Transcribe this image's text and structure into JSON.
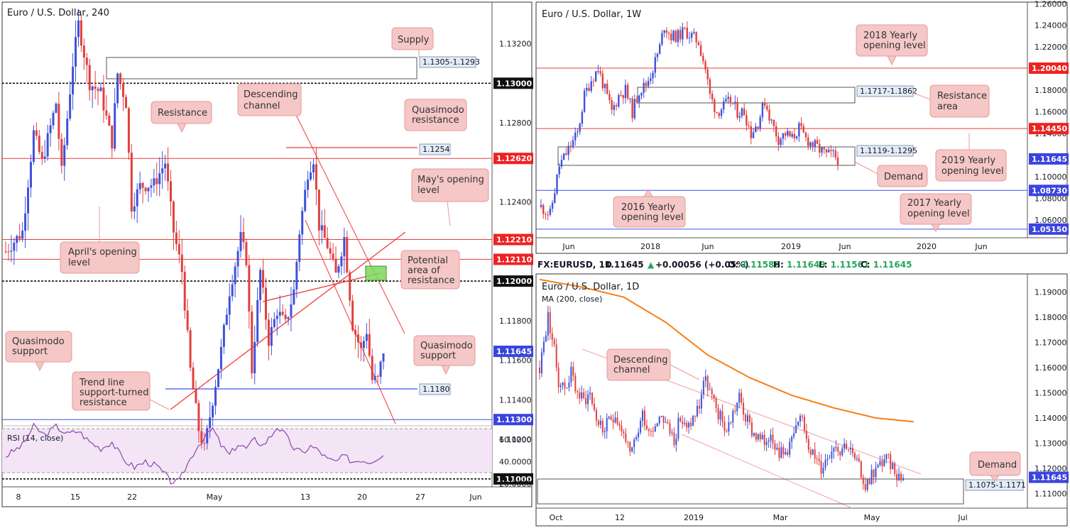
{
  "colors": {
    "up": "#3f51d8",
    "down": "#e0403e",
    "res_line": "#ef3b3b",
    "sup_line": "#3f51f0",
    "ann_bg": "#f5c7c7",
    "ann_border": "#e89a9a",
    "ma": "#f57f17",
    "rsi": "#8e44ad",
    "rsi_band": "#f3e5f5",
    "green_zone": "#7ad85a",
    "price_tag": "#3a44e0",
    "tag_red": "#ee2222",
    "tag_black": "#111111"
  },
  "panels": {
    "h4": {
      "title": "Euro / U.S. Dollar, 240",
      "x_ticks": [
        "8",
        "15",
        "22",
        "May",
        "13",
        "20",
        "27",
        "Jun"
      ],
      "y_ticks": [
        "1.13200",
        "1.12800",
        "1.12400",
        "1.11800",
        "1.11600",
        "1.11400",
        "1.11200"
      ],
      "price_tags": [
        "1.13000",
        "1.12620",
        "1.12210",
        "1.12110",
        "1.12000",
        "1.11645",
        "1.11300",
        "1.11000"
      ],
      "boxes": [
        "1.1305-1.1293",
        "1.1254",
        "1.1180"
      ],
      "annotations": [
        "Supply",
        "Descending channel",
        "Resistance",
        "Quasimodo resistance",
        "May's opening level",
        "April's opening level",
        "Potential area of resistance",
        "Quasimodo support",
        "Quasimodo support",
        "Trend line support-turned resistance"
      ],
      "rsi": {
        "label": "RSI (14, close)",
        "ticks": [
          "60.0000",
          "40.0000",
          "20.0000"
        ]
      }
    },
    "weekly": {
      "title": "Euro / U.S. Dollar, 1W",
      "x_ticks": [
        "Jun",
        "2018",
        "Jun",
        "2019",
        "Jun",
        "2020",
        "Jun"
      ],
      "y_ticks": [
        "1.26000",
        "1.24000",
        "1.22000",
        "1.18000",
        "1.16000",
        "1.14000",
        "1.10000",
        "1.08000",
        "1.06000"
      ],
      "price_tags": [
        "1.20040",
        "1.14450",
        "1.11645",
        "1.08730",
        "1.05150"
      ],
      "boxes": [
        "1.1717-1.1862",
        "1.1119-1.1295"
      ],
      "annotations": [
        "2018 Yearly opening level",
        "Resistance area",
        "2019 Yearly opening level",
        "Demand",
        "2016 Yearly opening level",
        "2017 Yearly opening level"
      ]
    },
    "daily": {
      "title": "Euro / U.S. Dollar, 1D",
      "ma_label": "MA (200, close)",
      "x_ticks": [
        "Oct",
        "12",
        "2019",
        "Mar",
        "May",
        "Jul"
      ],
      "y_ticks": [
        "1.19000",
        "1.18000",
        "1.17000",
        "1.16000",
        "1.15000",
        "1.14000",
        "1.13000",
        "1.12000",
        "1.11000"
      ],
      "price_tags": [
        "1.11645"
      ],
      "boxes": [
        "1.1075-1.1171"
      ],
      "annotations": [
        "Descending channel",
        "Demand"
      ],
      "info": {
        "symbol": "FX:EURUSD, 1D",
        "last": "1.11645",
        "change": "+0.00056 (+0.05%)",
        "o_label": "O:",
        "o": "1.11588",
        "h_label": "H:",
        "h": "1.11649",
        "l_label": "L:",
        "l": "1.11561",
        "c_label": "C:",
        "c": "1.11645"
      }
    }
  },
  "chart_data": [
    {
      "type": "candlestick",
      "title": "Euro / U.S. Dollar, 240",
      "x_ticks": [
        "8",
        "15",
        "22",
        "May",
        "13",
        "20",
        "27",
        "Jun"
      ],
      "ylim": [
        1.1096,
        1.1341
      ],
      "y_ticks": [
        1.132,
        1.128,
        1.124,
        1.118,
        1.116,
        1.114,
        1.112
      ],
      "levels": [
        {
          "value": 1.13,
          "style": "dotted"
        },
        {
          "value": 1.1262,
          "style": "resistance"
        },
        {
          "value": 1.1221,
          "style": "resistance"
        },
        {
          "value": 1.1211,
          "style": "resistance"
        },
        {
          "value": 1.12,
          "style": "dotted"
        },
        {
          "value": 1.113,
          "style": "support"
        },
        {
          "value": 1.11,
          "style": "dotted"
        }
      ],
      "zones": [
        {
          "label": "1.1305-1.1293",
          "from": 1.1293,
          "to": 1.1305
        }
      ],
      "last": 1.11645,
      "close_path": [
        [
          0,
          1.1215
        ],
        [
          6,
          1.1225
        ],
        [
          10,
          1.1275
        ],
        [
          13,
          1.126
        ],
        [
          18,
          1.129
        ],
        [
          20,
          1.1255
        ],
        [
          24,
          1.131
        ],
        [
          26,
          1.133
        ],
        [
          30,
          1.13
        ],
        [
          34,
          1.1295
        ],
        [
          38,
          1.127
        ],
        [
          40,
          1.1305
        ],
        [
          43,
          1.129
        ],
        [
          45,
          1.1238
        ],
        [
          48,
          1.1248
        ],
        [
          53,
          1.1249
        ],
        [
          57,
          1.126
        ],
        [
          60,
          1.1225
        ],
        [
          63,
          1.1205
        ],
        [
          66,
          1.1155
        ],
        [
          69,
          1.1125
        ],
        [
          71,
          1.1115
        ],
        [
          74,
          1.114
        ],
        [
          77,
          1.1165
        ],
        [
          80,
          1.1195
        ],
        [
          84,
          1.1222
        ],
        [
          86,
          1.1211
        ],
        [
          88,
          1.1155
        ],
        [
          91,
          1.1205
        ],
        [
          94,
          1.117
        ],
        [
          97,
          1.1185
        ],
        [
          100,
          1.1178
        ],
        [
          103,
          1.1195
        ],
        [
          105,
          1.1225
        ],
        [
          108,
          1.1255
        ],
        [
          110,
          1.1262
        ],
        [
          112,
          1.1228
        ],
        [
          115,
          1.1218
        ],
        [
          118,
          1.1203
        ],
        [
          121,
          1.1222
        ],
        [
          124,
          1.1178
        ],
        [
          127,
          1.1165
        ],
        [
          129,
          1.1175
        ],
        [
          131,
          1.115
        ],
        [
          133,
          1.115
        ],
        [
          135,
          1.1165
        ]
      ],
      "rsi": {
        "label": "RSI (14, close)",
        "ylim": [
          18,
          80
        ],
        "band": [
          30,
          70
        ],
        "ticks": [
          60,
          40,
          20
        ],
        "values": [
          [
            0,
            45
          ],
          [
            6,
            55
          ],
          [
            10,
            72
          ],
          [
            14,
            64
          ],
          [
            18,
            72
          ],
          [
            22,
            65
          ],
          [
            26,
            68
          ],
          [
            30,
            58
          ],
          [
            34,
            52
          ],
          [
            38,
            58
          ],
          [
            42,
            42
          ],
          [
            46,
            35
          ],
          [
            50,
            40
          ],
          [
            54,
            36
          ],
          [
            57,
            28
          ],
          [
            59,
            22
          ],
          [
            62,
            22
          ],
          [
            65,
            38
          ],
          [
            68,
            52
          ],
          [
            71,
            62
          ],
          [
            74,
            70
          ],
          [
            77,
            55
          ],
          [
            80,
            46
          ],
          [
            83,
            56
          ],
          [
            86,
            52
          ],
          [
            89,
            60
          ],
          [
            92,
            55
          ],
          [
            95,
            64
          ],
          [
            97,
            72
          ],
          [
            100,
            64
          ],
          [
            103,
            52
          ],
          [
            106,
            48
          ],
          [
            109,
            54
          ],
          [
            112,
            50
          ],
          [
            115,
            42
          ],
          [
            118,
            40
          ],
          [
            121,
            45
          ],
          [
            124,
            40
          ],
          [
            127,
            42
          ],
          [
            130,
            40
          ],
          [
            133,
            44
          ],
          [
            135,
            46
          ]
        ]
      }
    },
    {
      "type": "candlestick",
      "title": "Euro / U.S. Dollar, 1W",
      "x_ticks": [
        "Jun",
        "2018",
        "Jun",
        "2019",
        "Jun",
        "2020",
        "Jun"
      ],
      "ylim": [
        1.0435,
        1.2615
      ],
      "y_ticks": [
        1.26,
        1.24,
        1.22,
        1.18,
        1.16,
        1.14,
        1.1,
        1.08,
        1.06
      ],
      "levels": [
        {
          "value": 1.2004,
          "style": "resistance"
        },
        {
          "value": 1.1445,
          "style": "resistance"
        },
        {
          "value": 1.0873,
          "style": "support"
        },
        {
          "value": 1.0515,
          "style": "support"
        }
      ],
      "zones": [
        {
          "label": "1.1717-1.1862",
          "from": 1.1717,
          "to": 1.1862
        },
        {
          "label": "1.1119-1.1295",
          "from": 1.1119,
          "to": 1.1295
        }
      ],
      "last": 1.11645,
      "close_path": [
        [
          0,
          1.072
        ],
        [
          4,
          1.065
        ],
        [
          8,
          1.11
        ],
        [
          12,
          1.125
        ],
        [
          16,
          1.14
        ],
        [
          19,
          1.175
        ],
        [
          22,
          1.19
        ],
        [
          25,
          1.2
        ],
        [
          28,
          1.18
        ],
        [
          31,
          1.16
        ],
        [
          34,
          1.175
        ],
        [
          37,
          1.18
        ],
        [
          40,
          1.16
        ],
        [
          43,
          1.18
        ],
        [
          46,
          1.185
        ],
        [
          49,
          1.2
        ],
        [
          52,
          1.22
        ],
        [
          54,
          1.24
        ],
        [
          57,
          1.23
        ],
        [
          60,
          1.23
        ],
        [
          63,
          1.235
        ],
        [
          66,
          1.23
        ],
        [
          69,
          1.225
        ],
        [
          72,
          1.2
        ],
        [
          74,
          1.175
        ],
        [
          77,
          1.16
        ],
        [
          80,
          1.165
        ],
        [
          83,
          1.17
        ],
        [
          86,
          1.16
        ],
        [
          89,
          1.16
        ],
        [
          92,
          1.14
        ],
        [
          95,
          1.15
        ],
        [
          98,
          1.17
        ],
        [
          101,
          1.15
        ],
        [
          104,
          1.135
        ],
        [
          107,
          1.14
        ],
        [
          110,
          1.135
        ],
        [
          113,
          1.145
        ],
        [
          116,
          1.135
        ],
        [
          119,
          1.13
        ],
        [
          122,
          1.125
        ],
        [
          125,
          1.12
        ],
        [
          128,
          1.12
        ],
        [
          130,
          1.1165
        ]
      ]
    },
    {
      "type": "candlestick",
      "title": "Euro / U.S. Dollar, 1D",
      "x_ticks": [
        "Oct",
        "12",
        "2019",
        "Mar",
        "May",
        "Jul"
      ],
      "ylim": [
        1.1042,
        1.1972
      ],
      "y_ticks": [
        1.19,
        1.18,
        1.17,
        1.16,
        1.15,
        1.14,
        1.13,
        1.12,
        1.11
      ],
      "zones": [
        {
          "label": "1.1075-1.1171",
          "from": 1.1075,
          "to": 1.1171
        }
      ],
      "last": 1.11645,
      "close_path": [
        [
          0,
          1.16
        ],
        [
          2,
          1.17
        ],
        [
          4,
          1.18
        ],
        [
          6,
          1.172
        ],
        [
          9,
          1.155
        ],
        [
          12,
          1.152
        ],
        [
          15,
          1.158
        ],
        [
          18,
          1.15
        ],
        [
          21,
          1.147
        ],
        [
          24,
          1.15
        ],
        [
          27,
          1.14
        ],
        [
          30,
          1.135
        ],
        [
          33,
          1.138
        ],
        [
          36,
          1.142
        ],
        [
          39,
          1.135
        ],
        [
          41,
          1.132
        ],
        [
          43,
          1.124
        ],
        [
          46,
          1.132
        ],
        [
          49,
          1.142
        ],
        [
          52,
          1.135
        ],
        [
          55,
          1.138
        ],
        [
          58,
          1.142
        ],
        [
          61,
          1.136
        ],
        [
          64,
          1.132
        ],
        [
          67,
          1.14
        ],
        [
          70,
          1.135
        ],
        [
          73,
          1.14
        ],
        [
          76,
          1.145
        ],
        [
          78,
          1.155
        ],
        [
          80,
          1.153
        ],
        [
          83,
          1.145
        ],
        [
          86,
          1.14
        ],
        [
          89,
          1.135
        ],
        [
          92,
          1.142
        ],
        [
          95,
          1.148
        ],
        [
          98,
          1.14
        ],
        [
          101,
          1.135
        ],
        [
          104,
          1.132
        ],
        [
          107,
          1.13
        ],
        [
          110,
          1.135
        ],
        [
          113,
          1.128
        ],
        [
          116,
          1.125
        ],
        [
          119,
          1.13
        ],
        [
          122,
          1.135
        ],
        [
          125,
          1.14
        ],
        [
          128,
          1.13
        ],
        [
          131,
          1.124
        ],
        [
          134,
          1.12
        ],
        [
          137,
          1.125
        ],
        [
          140,
          1.13
        ],
        [
          143,
          1.128
        ],
        [
          146,
          1.13
        ],
        [
          149,
          1.125
        ],
        [
          152,
          1.12
        ],
        [
          155,
          1.113
        ],
        [
          158,
          1.118
        ],
        [
          161,
          1.12
        ],
        [
          164,
          1.124
        ],
        [
          167,
          1.122
        ],
        [
          170,
          1.118
        ],
        [
          173,
          1.1165
        ]
      ],
      "series": [
        {
          "name": "MA (200, close)",
          "values": [
            [
              0,
              1.195
            ],
            [
              20,
              1.192
            ],
            [
              40,
              1.188
            ],
            [
              60,
              1.178
            ],
            [
              80,
              1.165
            ],
            [
              100,
              1.156
            ],
            [
              120,
              1.149
            ],
            [
              140,
              1.144
            ],
            [
              160,
              1.14
            ],
            [
              178,
              1.1385
            ]
          ]
        }
      ]
    }
  ]
}
